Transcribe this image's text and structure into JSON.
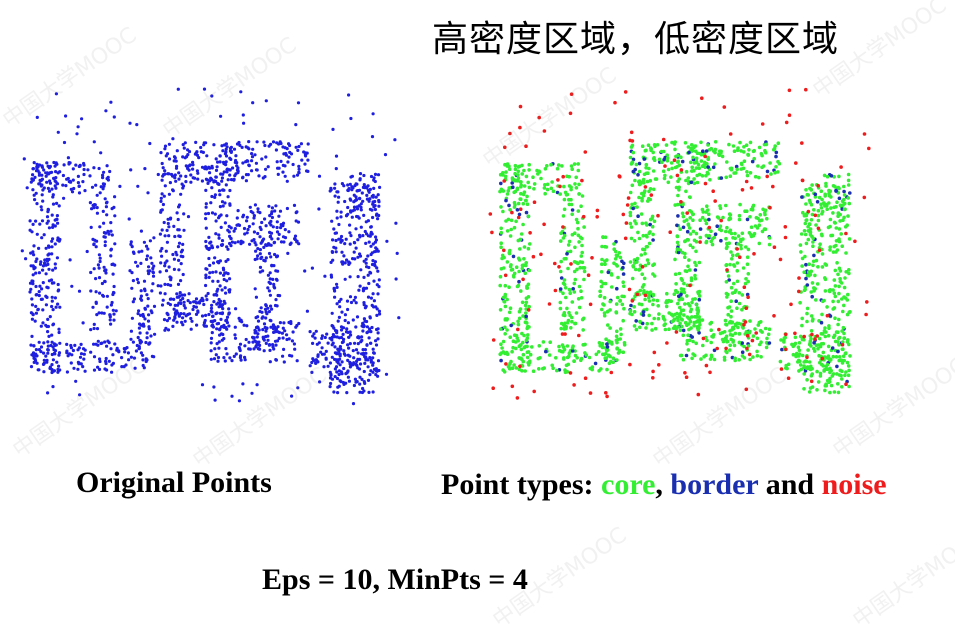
{
  "heading": "高密度区域，低密度区域",
  "watermark": "中国大学MOOC",
  "left_panel": {
    "caption": "Original Points",
    "point_color": "#1f1fe0"
  },
  "right_panel": {
    "caption_prefix": "Point types: ",
    "legend": [
      {
        "label": "core",
        "color": "#33ee33"
      },
      {
        "label": "border",
        "color": "#1a2fb0"
      },
      {
        "label": "noise",
        "color": "#ee1c1c"
      }
    ],
    "separator": ", ",
    "conjunction": " and "
  },
  "parameters": "Eps = 10, MinPts = 4"
}
